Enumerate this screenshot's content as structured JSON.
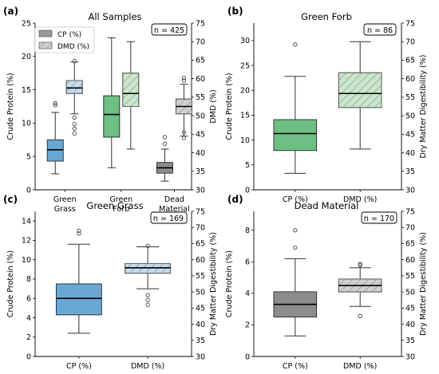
{
  "colors": {
    "green": "#6dbf83",
    "green_light": "#c9e6cb",
    "blue": "#6aa8d4",
    "blue_light": "#c4dcee",
    "gray": "#8c8c8c",
    "gray_light": "#d0d0d0"
  },
  "legend": {
    "cp_label": "CP (%)",
    "dmd_label": "DMD (%)"
  },
  "chart_data": [
    {
      "type": "boxplot",
      "panel": "(a)",
      "title": "All Samples",
      "n_label": "n = 425",
      "ylabel": "Crude Protein (%)",
      "y2label": "DMD (%)",
      "ylim": [
        0,
        25
      ],
      "y2lim": [
        30,
        75
      ],
      "yticks": [
        0,
        5,
        10,
        15,
        20,
        25
      ],
      "y2ticks": [
        30,
        35,
        40,
        45,
        50,
        55,
        60,
        65,
        70,
        75
      ],
      "categories": [
        "Green\nGrass",
        "Green\nForb",
        "Dead\nMaterial"
      ],
      "legend": true,
      "series": [
        {
          "name": "CP (%)",
          "axis": "left",
          "boxes": [
            {
              "category": "Green Grass",
              "color": "blue",
              "hatched": false,
              "whislo": 2.4,
              "q1": 4.3,
              "med": 6.0,
              "q3": 7.5,
              "whishi": 11.6,
              "fliers": [
                12.7,
                13.0
              ]
            },
            {
              "category": "Green Forb",
              "color": "green",
              "hatched": false,
              "whislo": 3.3,
              "q1": 7.9,
              "med": 11.3,
              "q3": 14.1,
              "whishi": 22.8,
              "fliers": []
            },
            {
              "category": "Dead Material",
              "color": "gray",
              "hatched": false,
              "whislo": 1.3,
              "q1": 2.5,
              "med": 3.3,
              "q3": 4.1,
              "whishi": 6.1,
              "fliers": [
                6.9,
                7.9
              ]
            }
          ]
        },
        {
          "name": "DMD (%)",
          "axis": "right",
          "boxes": [
            {
              "category": "Green Grass",
              "color": "blue",
              "hatched": true,
              "whislo": 50.5,
              "q1": 56.0,
              "med": 57.5,
              "q3": 59.5,
              "whishi": 64.5,
              "fliers": [
                64.8,
                47.7,
                46.5,
                45.2,
                49.5
              ]
            },
            {
              "category": "Green Forb",
              "color": "green",
              "hatched": true,
              "whislo": 41.0,
              "q1": 52.5,
              "med": 56.0,
              "q3": 61.5,
              "whishi": 70.0,
              "fliers": []
            },
            {
              "category": "Dead Material",
              "color": "gray",
              "hatched": true,
              "whislo": 44.5,
              "q1": 50.5,
              "med": 52.5,
              "q3": 54.5,
              "whishi": 58.5,
              "fliers": [
                59.5,
                60.2,
                45.5,
                44.0
              ]
            }
          ]
        }
      ]
    },
    {
      "type": "boxplot",
      "panel": "(b)",
      "title": "Green Forb",
      "n_label": "n = 86",
      "ylabel": "Crude Protein (%)",
      "y2label": "Dry Matter Digestibility (%)",
      "ylim": [
        0,
        33.5
      ],
      "y2lim": [
        30,
        75
      ],
      "yticks": [
        0,
        5,
        10,
        15,
        20,
        25,
        30
      ],
      "y2ticks": [
        30,
        35,
        40,
        45,
        50,
        55,
        60,
        65,
        70,
        75
      ],
      "categories": [
        "CP (%)",
        "DMD (%)"
      ],
      "color": "green",
      "boxes": [
        {
          "category": "CP (%)",
          "axis": "left",
          "hatched": false,
          "whislo": 3.3,
          "q1": 7.9,
          "med": 11.3,
          "q3": 14.1,
          "whishi": 22.8,
          "fliers": [
            29.2
          ]
        },
        {
          "category": "DMD (%)",
          "axis": "right",
          "hatched": true,
          "whislo": 41.0,
          "q1": 52.2,
          "med": 56.0,
          "q3": 61.6,
          "whishi": 70.0,
          "fliers": []
        }
      ]
    },
    {
      "type": "boxplot",
      "panel": "(c)",
      "title": "Green Grass",
      "n_label": "n = 169",
      "ylabel": "Crude Protein (%)",
      "y2label": "Dry Matter Digestibility (%)",
      "ylim": [
        0,
        15
      ],
      "y2lim": [
        30,
        75
      ],
      "yticks": [
        0,
        2,
        4,
        6,
        8,
        10,
        12,
        14
      ],
      "y2ticks": [
        30,
        35,
        40,
        45,
        50,
        55,
        60,
        65,
        70,
        75
      ],
      "categories": [
        "CP (%)",
        "DMD (%)"
      ],
      "color": "blue",
      "boxes": [
        {
          "category": "CP (%)",
          "axis": "left",
          "hatched": false,
          "whislo": 2.4,
          "q1": 4.3,
          "med": 6.0,
          "q3": 7.5,
          "whishi": 11.6,
          "fliers": [
            12.7,
            13.0
          ]
        },
        {
          "category": "DMD (%)",
          "axis": "right",
          "hatched": true,
          "whislo": 51.0,
          "q1": 55.8,
          "med": 57.5,
          "q3": 58.8,
          "whishi": 64.0,
          "fliers": [
            64.3,
            49.0,
            47.5,
            46.0
          ]
        }
      ]
    },
    {
      "type": "boxplot",
      "panel": "(d)",
      "title": "Dead Material",
      "n_label": "n = 170",
      "ylabel": "Crude Protein (%)",
      "y2label": "Dry Matter Digestibility (%)",
      "ylim": [
        0,
        9.2
      ],
      "y2lim": [
        30,
        75
      ],
      "yticks": [
        0,
        2,
        4,
        6,
        8
      ],
      "y2ticks": [
        30,
        35,
        40,
        45,
        50,
        55,
        60,
        65,
        70,
        75
      ],
      "categories": [
        "CP (%)",
        "DMD (%)"
      ],
      "color": "gray",
      "boxes": [
        {
          "category": "CP (%)",
          "axis": "left",
          "hatched": false,
          "whislo": 1.3,
          "q1": 2.5,
          "med": 3.3,
          "q3": 4.1,
          "whishi": 6.2,
          "fliers": [
            6.9,
            8.0
          ]
        },
        {
          "category": "DMD (%)",
          "axis": "right",
          "hatched": true,
          "whislo": 45.5,
          "q1": 50.0,
          "med": 52.0,
          "q3": 54.0,
          "whishi": 57.5,
          "fliers": [
            58.3,
            58.7,
            42.5
          ]
        }
      ]
    }
  ]
}
